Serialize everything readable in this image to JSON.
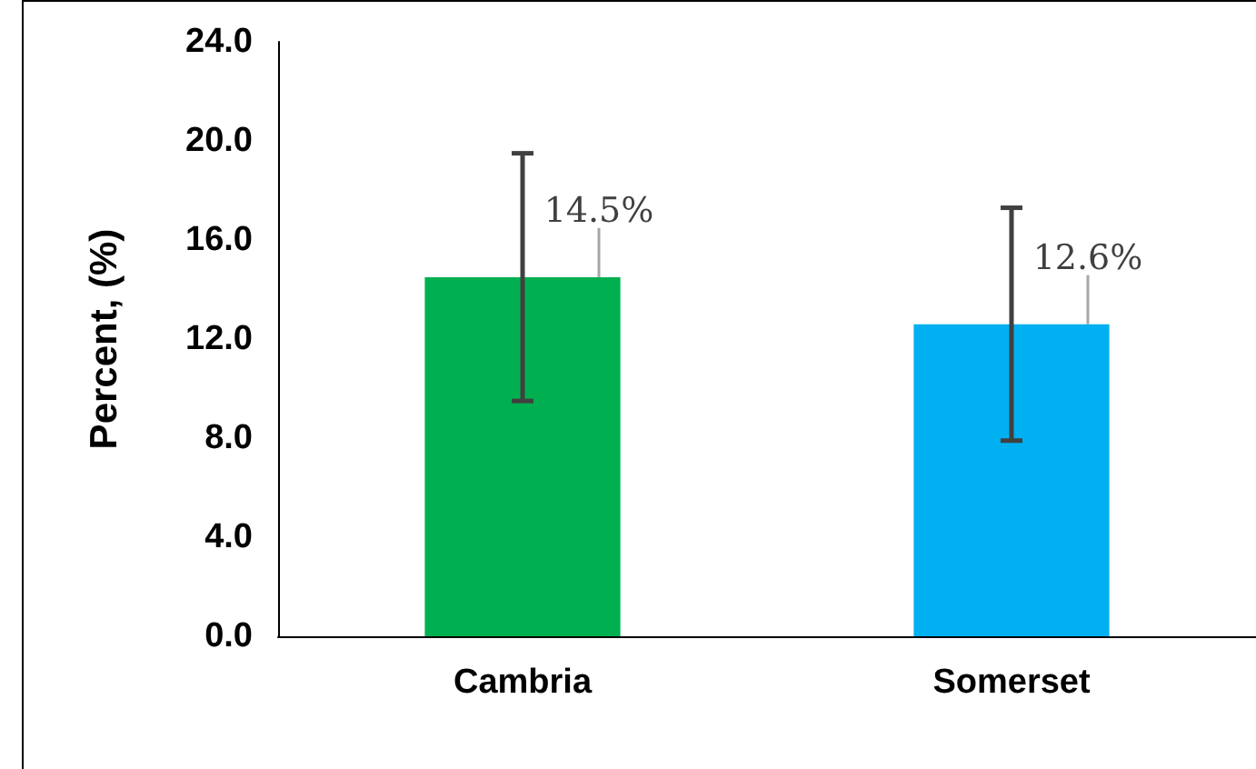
{
  "chart_data": {
    "type": "bar",
    "ylabel": "Percent, (%)",
    "categories": [
      "Cambria",
      "Somerset"
    ],
    "values": [
      14.5,
      12.6
    ],
    "colors": [
      "#00b050",
      "#00b0f0"
    ],
    "errors": [
      5.0,
      4.7
    ],
    "value_labels": [
      "14.5%",
      "12.6%"
    ],
    "ylim": [
      0,
      24
    ],
    "yticks": [
      {
        "value": 0,
        "label": "0.0"
      },
      {
        "value": 4,
        "label": "4.0"
      },
      {
        "value": 8,
        "label": "8.0"
      },
      {
        "value": 12,
        "label": "12.0"
      },
      {
        "value": 16,
        "label": "16.0"
      },
      {
        "value": 20,
        "label": "20.0"
      },
      {
        "value": 24,
        "label": "24.0"
      }
    ],
    "grid": false
  }
}
